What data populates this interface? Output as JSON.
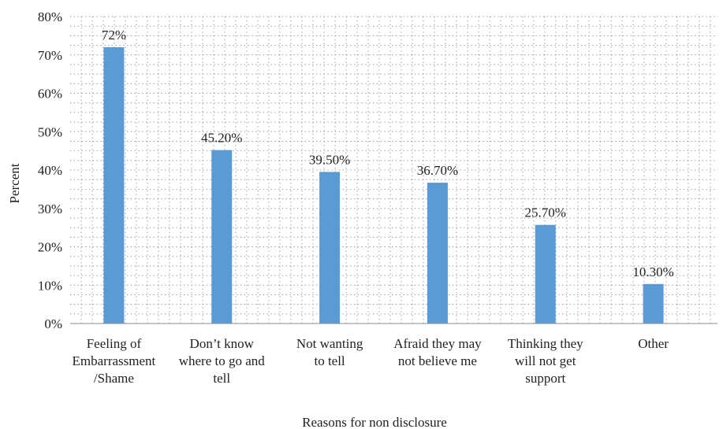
{
  "chart_data": {
    "type": "bar",
    "title": "",
    "xlabel": "Reasons for non disclosure",
    "ylabel": "Percent",
    "categories": [
      [
        "Feeling of",
        "Embarrassment",
        "/Shame"
      ],
      [
        "Don’t know",
        "where to go and",
        "tell"
      ],
      [
        "Not wanting",
        "to tell"
      ],
      [
        "Afraid they may",
        "not believe me"
      ],
      [
        "Thinking they",
        "will not get",
        "support"
      ],
      [
        "Other"
      ]
    ],
    "values": [
      72,
      45.2,
      39.5,
      36.7,
      25.7,
      10.3
    ],
    "data_labels": [
      "72%",
      "45.20%",
      "39.50%",
      "36.70%",
      "25.70%",
      "10.30%"
    ],
    "ylim": [
      0,
      80
    ],
    "y_ticks": [
      0,
      10,
      20,
      30,
      40,
      50,
      60,
      70,
      80
    ],
    "y_tick_labels": [
      "0%",
      "10%",
      "20%",
      "30%",
      "40%",
      "50%",
      "60%",
      "70%",
      "80%"
    ],
    "grid": "dotted",
    "legend": "none",
    "colors": {
      "bar": "#5b9bd5",
      "grid": "#9a9a9a",
      "axis": "#8c8c8c"
    }
  }
}
